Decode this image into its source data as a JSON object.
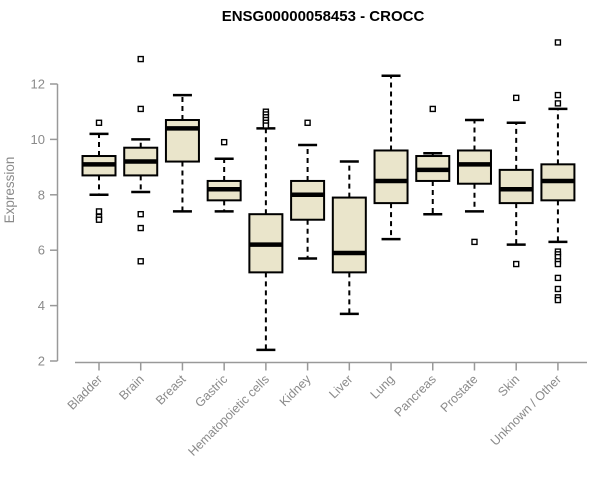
{
  "chart_data": {
    "type": "boxplot",
    "title": "ENSG00000058453 - CROCC",
    "ylabel": "Expression",
    "xlabel": "",
    "yticks": [
      2,
      4,
      6,
      8,
      10,
      12
    ],
    "ylim": [
      1.9,
      13.7
    ],
    "grid": false,
    "legend": "none",
    "categories": [
      "Bladder",
      "Brain",
      "Breast",
      "Gastric",
      "Hematopoietic cells",
      "Kidney",
      "Liver",
      "Lung",
      "Pancreas",
      "Prostate",
      "Skin",
      "Unknown / Other"
    ],
    "boxes": [
      {
        "category": "Bladder",
        "whisker_low": 8.0,
        "q1": 8.7,
        "median": 9.1,
        "q3": 9.4,
        "whisker_high": 10.2,
        "outliers": [
          10.6,
          7.4,
          7.2,
          7.1
        ]
      },
      {
        "category": "Brain",
        "whisker_low": 8.1,
        "q1": 8.7,
        "median": 9.2,
        "q3": 9.7,
        "whisker_high": 10.0,
        "outliers": [
          12.9,
          11.1,
          7.3,
          6.8,
          5.6
        ]
      },
      {
        "category": "Breast",
        "whisker_low": 7.4,
        "q1": 9.2,
        "median": 10.4,
        "q3": 10.7,
        "whisker_high": 11.6,
        "outliers": []
      },
      {
        "category": "Gastric",
        "whisker_low": 7.4,
        "q1": 7.8,
        "median": 8.2,
        "q3": 8.5,
        "whisker_high": 9.3,
        "outliers": [
          9.9
        ]
      },
      {
        "category": "Hematopoietic cells",
        "whisker_low": 2.4,
        "q1": 5.2,
        "median": 6.2,
        "q3": 7.3,
        "whisker_high": 10.4,
        "outliers": [
          11.0,
          10.9,
          10.8,
          10.7,
          10.6,
          10.5
        ]
      },
      {
        "category": "Kidney",
        "whisker_low": 5.7,
        "q1": 7.1,
        "median": 8.0,
        "q3": 8.5,
        "whisker_high": 9.8,
        "outliers": [
          10.6
        ]
      },
      {
        "category": "Liver",
        "whisker_low": 3.7,
        "q1": 5.2,
        "median": 5.9,
        "q3": 7.9,
        "whisker_high": 9.2,
        "outliers": []
      },
      {
        "category": "Lung",
        "whisker_low": 6.4,
        "q1": 7.7,
        "median": 8.5,
        "q3": 9.6,
        "whisker_high": 12.3,
        "outliers": []
      },
      {
        "category": "Pancreas",
        "whisker_low": 7.3,
        "q1": 8.5,
        "median": 8.9,
        "q3": 9.4,
        "whisker_high": 9.5,
        "outliers": [
          11.1
        ]
      },
      {
        "category": "Prostate",
        "whisker_low": 7.4,
        "q1": 8.4,
        "median": 9.1,
        "q3": 9.6,
        "whisker_high": 10.7,
        "outliers": [
          6.3
        ]
      },
      {
        "category": "Skin",
        "whisker_low": 6.2,
        "q1": 7.7,
        "median": 8.2,
        "q3": 8.9,
        "whisker_high": 10.6,
        "outliers": [
          11.5,
          5.5
        ]
      },
      {
        "category": "Unknown / Other",
        "whisker_low": 6.3,
        "q1": 7.8,
        "median": 8.5,
        "q3": 9.1,
        "whisker_high": 11.1,
        "outliers": [
          13.5,
          11.6,
          11.3,
          5.95,
          5.85,
          5.75,
          5.6,
          5.5,
          5.0,
          4.6,
          4.3,
          4.2
        ]
      }
    ],
    "colors": {
      "box_fill": "#EAE5CB",
      "box_border": "#000000",
      "median": "#000000",
      "whisker": "#000000",
      "outlier_fill": "#FFFFFF",
      "axis": "#999999",
      "tick_text": "#8A8A8A",
      "title": "#000000",
      "background": "#FFFFFF"
    }
  }
}
